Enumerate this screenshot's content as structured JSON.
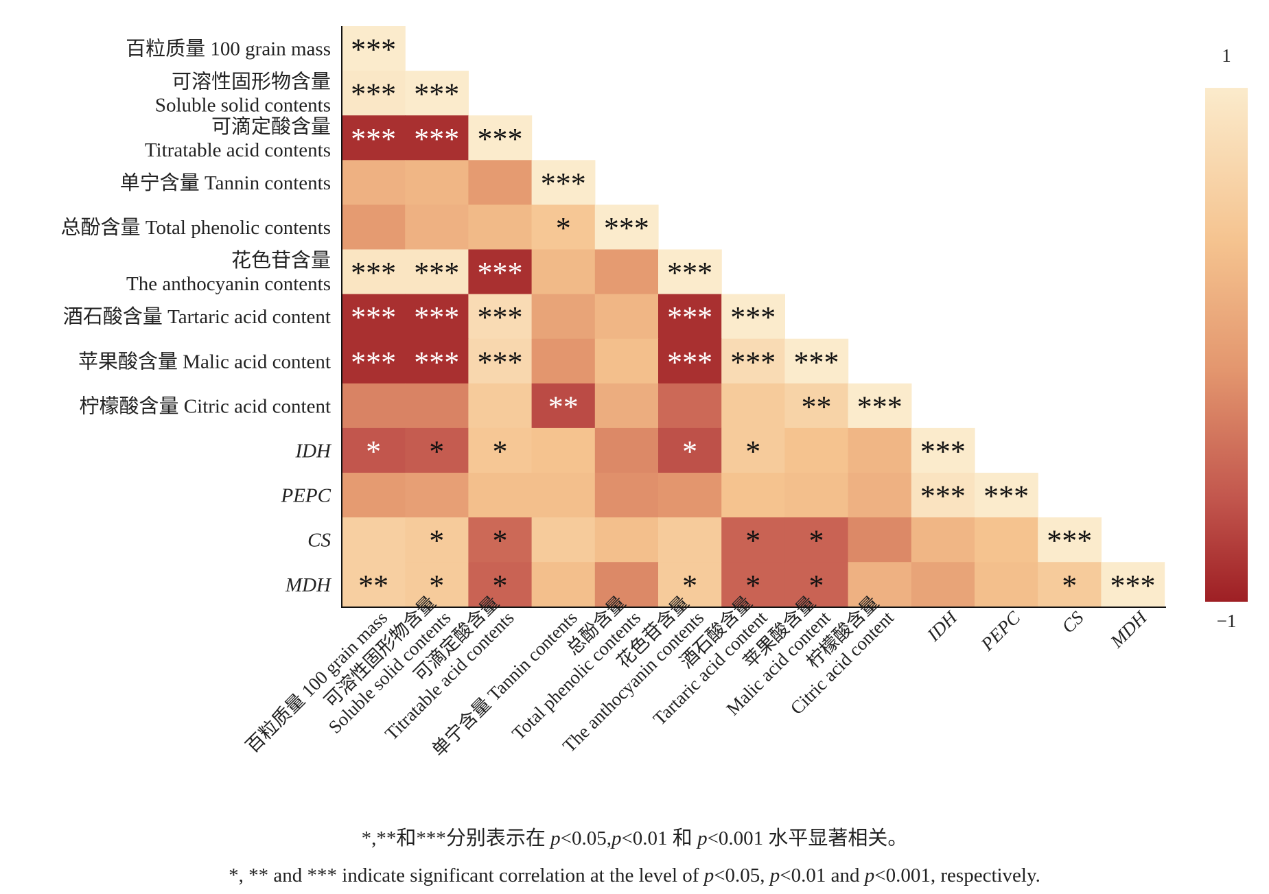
{
  "chart_data": {
    "type": "heatmap",
    "variables": [
      {
        "label_lines": [
          "百粒质量 100 grain mass"
        ],
        "x_lines": [
          "百粒质量 100 grain mass"
        ],
        "italic": false
      },
      {
        "label_lines": [
          "可溶性固形物含量",
          "Soluble solid contents"
        ],
        "x_lines": [
          "可溶性固形物含量",
          "Soluble solid contents"
        ],
        "italic": false
      },
      {
        "label_lines": [
          "可滴定酸含量",
          "Titratable acid contents"
        ],
        "x_lines": [
          "可滴定酸含量",
          "Titratable acid contents"
        ],
        "italic": false
      },
      {
        "label_lines": [
          "单宁含量 Tannin contents"
        ],
        "x_lines": [
          "单宁含量 Tannin contents"
        ],
        "italic": false
      },
      {
        "label_lines": [
          "总酚含量 Total phenolic contents"
        ],
        "x_lines": [
          "总酚含量",
          "Total phenolic contents"
        ],
        "italic": false
      },
      {
        "label_lines": [
          "花色苷含量",
          "The anthocyanin contents"
        ],
        "x_lines": [
          "花色苷含量",
          "The anthocyanin contents"
        ],
        "italic": false
      },
      {
        "label_lines": [
          "酒石酸含量 Tartaric acid content"
        ],
        "x_lines": [
          "酒石酸含量",
          "Tartaric acid content"
        ],
        "italic": false
      },
      {
        "label_lines": [
          "苹果酸含量 Malic acid content"
        ],
        "x_lines": [
          "苹果酸含量",
          "Malic acid content"
        ],
        "italic": false
      },
      {
        "label_lines": [
          "柠檬酸含量 Citric acid content"
        ],
        "x_lines": [
          "柠檬酸含量",
          "Citric acid content"
        ],
        "italic": false
      },
      {
        "label_lines": [
          "IDH"
        ],
        "x_lines": [
          "IDH"
        ],
        "italic": true
      },
      {
        "label_lines": [
          "PEPC"
        ],
        "x_lines": [
          "PEPC"
        ],
        "italic": true
      },
      {
        "label_lines": [
          "CS"
        ],
        "x_lines": [
          "CS"
        ],
        "italic": true
      },
      {
        "label_lines": [
          "MDH"
        ],
        "x_lines": [
          "MDH"
        ],
        "italic": true
      }
    ],
    "values": [
      [
        1.0
      ],
      [
        0.95,
        1.0
      ],
      [
        -0.85,
        -0.85,
        1.0
      ],
      [
        0.3,
        0.35,
        0.05,
        1.0
      ],
      [
        0.05,
        0.3,
        0.4,
        0.55,
        1.0
      ],
      [
        0.92,
        0.92,
        -0.85,
        0.4,
        0.05,
        1.0
      ],
      [
        -0.85,
        -0.85,
        0.8,
        0.15,
        0.35,
        -0.85,
        1.0
      ],
      [
        -0.85,
        -0.85,
        0.75,
        0.0,
        0.45,
        -0.85,
        0.8,
        1.0
      ],
      [
        -0.15,
        -0.15,
        0.6,
        -0.6,
        0.25,
        -0.35,
        0.6,
        0.7,
        1.0
      ],
      [
        -0.5,
        -0.45,
        0.55,
        0.5,
        -0.1,
        -0.55,
        0.6,
        0.5,
        0.35,
        1.0
      ],
      [
        0.05,
        0.1,
        0.45,
        0.45,
        -0.05,
        0.0,
        0.5,
        0.45,
        0.3,
        0.9,
        1.0
      ],
      [
        0.65,
        0.6,
        -0.35,
        0.6,
        0.45,
        0.6,
        -0.4,
        -0.4,
        -0.1,
        0.35,
        0.5,
        1.0
      ],
      [
        0.65,
        0.6,
        -0.4,
        0.45,
        -0.1,
        0.6,
        -0.4,
        -0.4,
        0.3,
        0.15,
        0.45,
        0.6,
        1.0
      ]
    ],
    "significance": [
      [
        "***"
      ],
      [
        "***",
        "***"
      ],
      [
        "***",
        "***",
        "***"
      ],
      [
        "",
        "",
        "",
        "***"
      ],
      [
        "",
        "",
        "",
        "*",
        "***"
      ],
      [
        "***",
        "***",
        "***",
        "",
        "",
        "***"
      ],
      [
        "***",
        "***",
        "***",
        "",
        "",
        "***",
        "***"
      ],
      [
        "***",
        "***",
        "***",
        "",
        "",
        "***",
        "***",
        "***"
      ],
      [
        "",
        "",
        "",
        "**",
        "",
        "",
        "",
        "**",
        "***"
      ],
      [
        "*",
        "*",
        "*",
        "",
        "",
        "*",
        "*",
        "",
        "",
        "***"
      ],
      [
        "",
        "",
        "",
        "",
        "",
        "",
        "",
        "",
        "",
        "***",
        "***"
      ],
      [
        "",
        "*",
        "*",
        "",
        "",
        "",
        "*",
        "*",
        "",
        "",
        "",
        "***"
      ],
      [
        "**",
        "*",
        "*",
        "",
        "",
        "*",
        "*",
        "*",
        "",
        "",
        "",
        "*",
        "***"
      ]
    ],
    "colorbar": {
      "min": -1,
      "max": 1,
      "min_label": "−1",
      "max_label": "1",
      "low_color": "#9e1f24",
      "high_color": "#fbebcc"
    },
    "title": "",
    "xlabel": "",
    "ylabel": ""
  },
  "notes": {
    "zh_marks": "*,**和***分别表示在 ",
    "zh_p1": "p",
    "zh_t1": "<0.05,",
    "zh_p2": "p",
    "zh_t2": "<0.01 和 ",
    "zh_p3": "p",
    "zh_t3": "<0.001 水平显著相关。",
    "en_lead": "*, ** and *** indicate significant correlation at the level of ",
    "en_p1": "p",
    "en_t1": "<0.05, ",
    "en_p2": "p",
    "en_t2": "<0.01 and ",
    "en_p3": "p",
    "en_t3": "<0.001, respectively."
  }
}
